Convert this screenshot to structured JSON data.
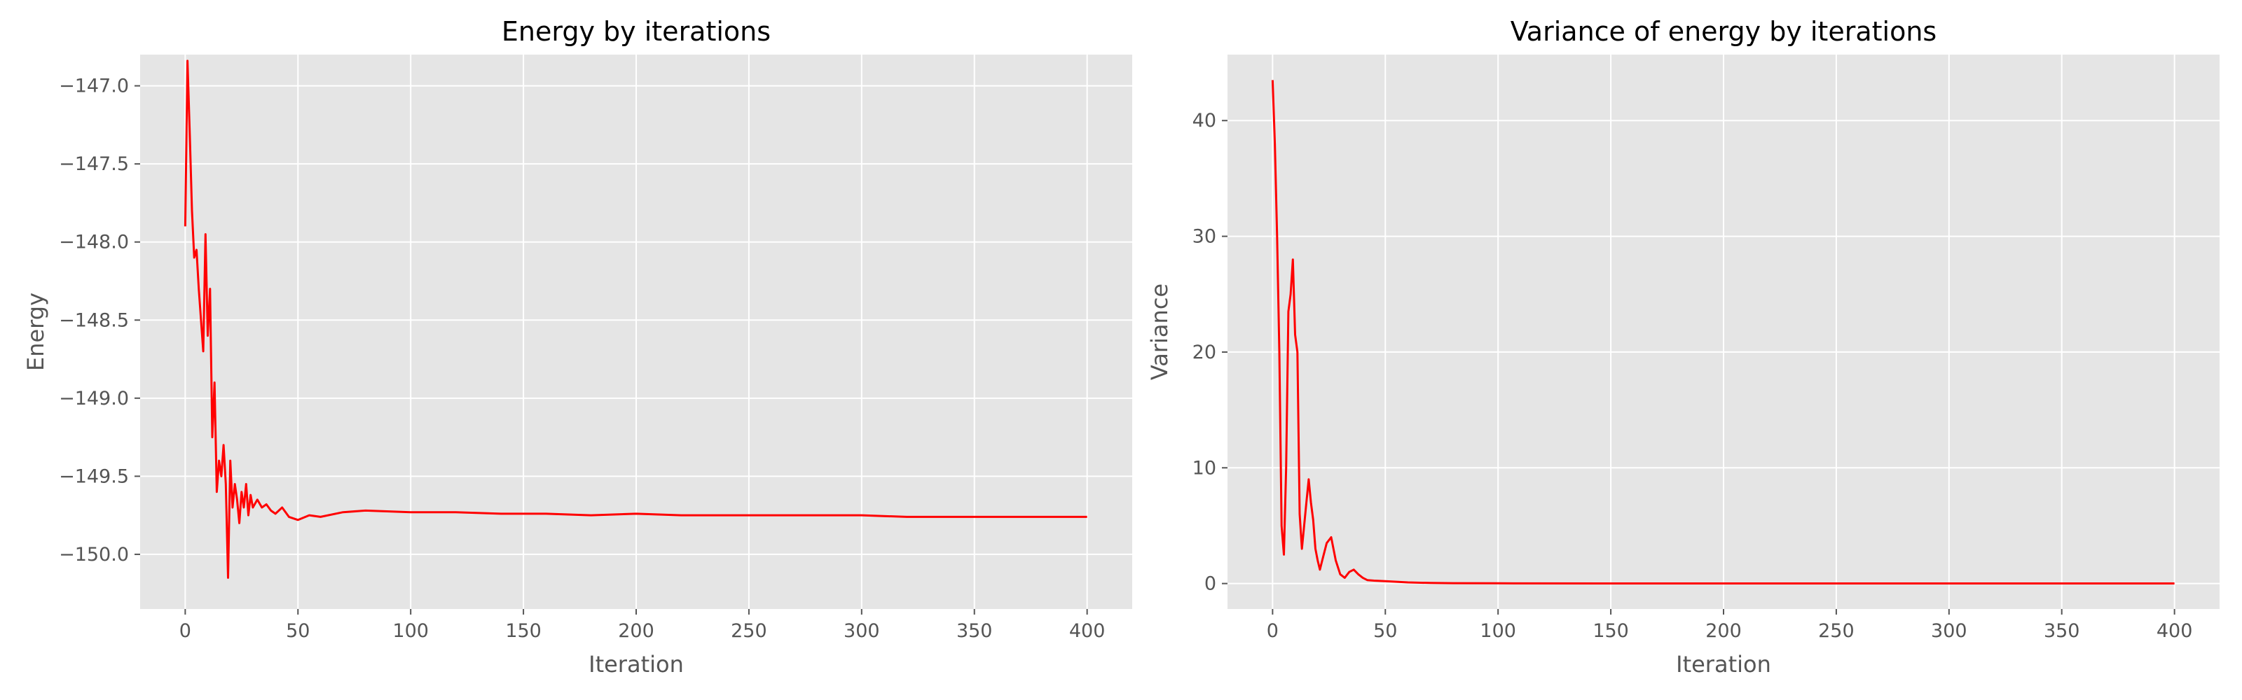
{
  "chart_data": [
    {
      "type": "line",
      "title": "Energy by iterations",
      "xlabel": "Iteration",
      "ylabel": "Energy",
      "xlim": [
        -20,
        420
      ],
      "ylim": [
        -150.35,
        -146.8
      ],
      "xticks": [
        0,
        50,
        100,
        150,
        200,
        250,
        300,
        350,
        400
      ],
      "xtick_labels": [
        "0",
        "50",
        "100",
        "150",
        "200",
        "250",
        "300",
        "350",
        "400"
      ],
      "yticks": [
        -150.0,
        -149.5,
        -149.0,
        -148.5,
        -148.0,
        -147.5,
        -147.0
      ],
      "ytick_labels": [
        "−150.0",
        "−149.5",
        "−149.0",
        "−148.5",
        "−148.0",
        "−147.5",
        "−147.0"
      ],
      "grid": true,
      "series": [
        {
          "color": "#ff0000",
          "x": [
            0,
            1,
            2,
            3,
            4,
            5,
            6,
            7,
            8,
            9,
            10,
            11,
            12,
            13,
            14,
            15,
            16,
            17,
            18,
            19,
            20,
            21,
            22,
            23,
            24,
            25,
            26,
            27,
            28,
            29,
            30,
            32,
            34,
            36,
            38,
            40,
            43,
            46,
            50,
            55,
            60,
            70,
            80,
            100,
            120,
            140,
            160,
            180,
            200,
            220,
            250,
            280,
            300,
            320,
            350,
            380,
            400
          ],
          "y": [
            -147.9,
            -146.84,
            -147.3,
            -147.8,
            -148.1,
            -148.05,
            -148.3,
            -148.5,
            -148.7,
            -147.95,
            -148.6,
            -148.3,
            -149.25,
            -148.9,
            -149.6,
            -149.4,
            -149.5,
            -149.3,
            -149.55,
            -150.15,
            -149.4,
            -149.7,
            -149.55,
            -149.65,
            -149.8,
            -149.6,
            -149.7,
            -149.55,
            -149.75,
            -149.62,
            -149.7,
            -149.65,
            -149.7,
            -149.68,
            -149.72,
            -149.74,
            -149.7,
            -149.76,
            -149.78,
            -149.75,
            -149.76,
            -149.73,
            -149.72,
            -149.73,
            -149.73,
            -149.74,
            -149.74,
            -149.75,
            -149.74,
            -149.75,
            -149.75,
            -149.75,
            -149.75,
            -149.76,
            -149.76,
            -149.76,
            -149.76
          ]
        }
      ]
    },
    {
      "type": "line",
      "title": "Variance of energy by iterations",
      "xlabel": "Iteration",
      "ylabel": "Variance",
      "xlim": [
        -20,
        420
      ],
      "ylim": [
        -2.2,
        45.7
      ],
      "xticks": [
        0,
        50,
        100,
        150,
        200,
        250,
        300,
        350,
        400
      ],
      "xtick_labels": [
        "0",
        "50",
        "100",
        "150",
        "200",
        "250",
        "300",
        "350",
        "400"
      ],
      "yticks": [
        0,
        10,
        20,
        30,
        40
      ],
      "ytick_labels": [
        "0",
        "10",
        "20",
        "30",
        "40"
      ],
      "grid": true,
      "series": [
        {
          "color": "#ff0000",
          "x": [
            0,
            1,
            2,
            3,
            4,
            5,
            6,
            7,
            8,
            9,
            10,
            11,
            12,
            13,
            14,
            15,
            16,
            17,
            18,
            19,
            20,
            21,
            22,
            24,
            26,
            28,
            30,
            32,
            34,
            36,
            38,
            40,
            42,
            45,
            50,
            55,
            60,
            70,
            80,
            100,
            150,
            200,
            300,
            400
          ],
          "y": [
            43.5,
            38.0,
            30.0,
            20.0,
            5.0,
            2.5,
            10.0,
            23.5,
            25.0,
            28.0,
            21.5,
            20.0,
            6.0,
            3.0,
            5.0,
            7.0,
            9.0,
            7.0,
            5.5,
            3.0,
            2.0,
            1.2,
            2.0,
            3.5,
            4.0,
            2.0,
            0.8,
            0.5,
            1.0,
            1.2,
            0.8,
            0.5,
            0.3,
            0.25,
            0.2,
            0.15,
            0.1,
            0.05,
            0.03,
            0.02,
            0.01,
            0.01,
            0.01,
            0.01
          ]
        }
      ]
    }
  ]
}
